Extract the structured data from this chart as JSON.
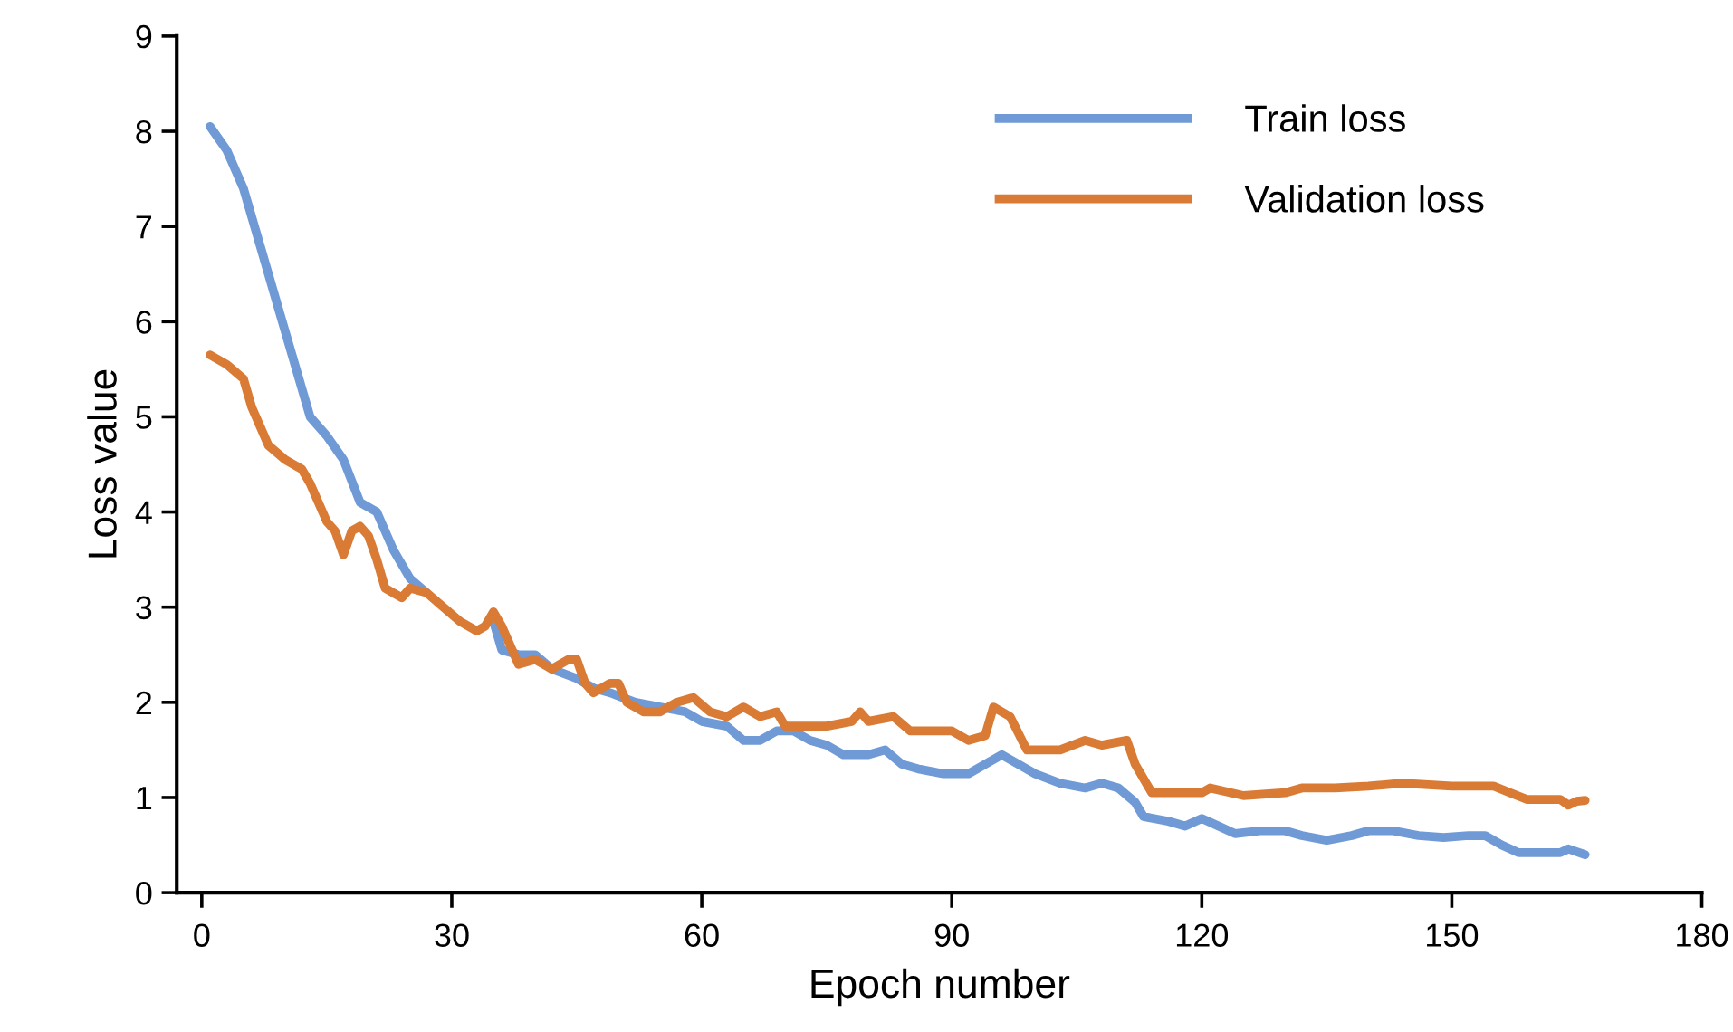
{
  "chart_data": {
    "type": "line",
    "xlabel": "Epoch number",
    "ylabel": "Loss value",
    "xlim": [
      -3,
      180
    ],
    "xticks": [
      0,
      30,
      60,
      90,
      120,
      150,
      180
    ],
    "ylim": [
      0,
      9
    ],
    "yticks": [
      0,
      1,
      2,
      3,
      4,
      5,
      6,
      7,
      8,
      9
    ],
    "grid": false,
    "legend": "top right",
    "marker": "none",
    "line_style": "solid",
    "series": [
      {
        "name": "Train loss",
        "color": "#6f9ad6",
        "x": [
          1,
          3,
          5,
          7,
          9,
          11,
          13,
          15,
          17,
          19,
          21,
          23,
          25,
          27,
          29,
          31,
          33,
          35,
          36,
          38,
          40,
          42,
          45,
          47,
          49,
          52,
          55,
          58,
          60,
          63,
          65,
          67,
          69,
          71,
          73,
          75,
          77,
          80,
          82,
          84,
          86,
          89,
          92,
          94,
          96,
          98,
          100,
          103,
          106,
          108,
          110,
          112,
          113,
          116,
          118,
          120,
          122,
          124,
          127,
          130,
          132,
          135,
          138,
          140,
          143,
          146,
          149,
          152,
          154,
          156,
          158,
          160,
          163,
          164,
          166
        ],
        "values": [
          8.05,
          7.8,
          7.4,
          6.8,
          6.2,
          5.6,
          5.0,
          4.8,
          4.55,
          4.1,
          4.0,
          3.6,
          3.3,
          3.15,
          null,
          null,
          null,
          2.85,
          2.55,
          2.5,
          2.5,
          2.35,
          2.25,
          2.15,
          2.1,
          2.0,
          1.95,
          1.9,
          1.8,
          1.75,
          1.6,
          1.6,
          1.7,
          1.7,
          1.6,
          1.55,
          1.45,
          1.45,
          1.5,
          1.35,
          1.3,
          1.25,
          1.25,
          1.35,
          1.45,
          1.35,
          1.25,
          1.15,
          1.1,
          1.15,
          1.1,
          0.95,
          0.8,
          0.75,
          0.7,
          0.78,
          0.7,
          0.62,
          0.65,
          0.65,
          0.6,
          0.55,
          0.6,
          0.65,
          0.65,
          0.6,
          0.58,
          0.6,
          0.6,
          0.5,
          0.42,
          0.42,
          0.42,
          0.46,
          0.4
        ]
      },
      {
        "name": "Validation loss",
        "color": "#d97b35",
        "x": [
          1,
          3,
          5,
          6,
          8,
          10,
          12,
          13,
          15,
          16,
          17,
          18,
          19,
          20,
          21,
          22,
          24,
          25,
          27,
          29,
          31,
          33,
          34,
          35,
          36,
          37,
          38,
          40,
          42,
          44,
          45,
          46,
          47,
          49,
          50,
          51,
          53,
          55,
          57,
          59,
          61,
          63,
          65,
          67,
          69,
          70,
          75,
          78,
          79,
          80,
          83,
          85,
          90,
          92,
          94,
          95,
          97,
          99,
          103,
          106,
          108,
          111,
          112,
          114,
          120,
          121,
          125,
          130,
          132,
          136,
          140,
          144,
          150,
          155,
          157,
          159,
          163,
          164,
          165,
          166
        ],
        "values": [
          5.65,
          5.55,
          5.4,
          5.1,
          4.7,
          4.55,
          4.45,
          4.3,
          3.9,
          3.8,
          3.55,
          3.8,
          3.85,
          3.75,
          3.5,
          3.2,
          3.1,
          3.2,
          3.15,
          3.0,
          2.85,
          2.75,
          2.8,
          2.95,
          2.8,
          2.6,
          2.4,
          2.45,
          2.35,
          2.45,
          2.45,
          2.2,
          2.1,
          2.2,
          2.2,
          2.0,
          1.9,
          1.9,
          2.0,
          2.05,
          1.9,
          1.85,
          1.95,
          1.85,
          1.9,
          1.75,
          1.75,
          1.8,
          1.9,
          1.8,
          1.85,
          1.7,
          1.7,
          1.6,
          1.65,
          1.95,
          1.85,
          1.5,
          1.5,
          1.6,
          1.55,
          1.6,
          1.35,
          1.05,
          1.05,
          1.1,
          1.02,
          1.05,
          1.1,
          1.1,
          1.12,
          1.15,
          1.12,
          1.12,
          1.05,
          0.98,
          0.98,
          0.92,
          0.96,
          0.97
        ]
      }
    ]
  }
}
